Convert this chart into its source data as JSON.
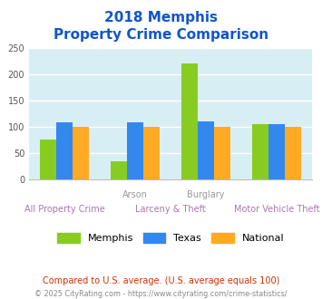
{
  "title_line1": "2018 Memphis",
  "title_line2": "Property Crime Comparison",
  "memphis": [
    75,
    35,
    220,
    105
  ],
  "texas": [
    108,
    108,
    110,
    105
  ],
  "national": [
    100,
    100,
    100,
    100
  ],
  "ylim": [
    0,
    250
  ],
  "yticks": [
    0,
    50,
    100,
    150,
    200,
    250
  ],
  "color_memphis": "#88cc22",
  "color_texas": "#3388ee",
  "color_national": "#ffaa22",
  "bg_color": "#d8eef5",
  "legend_labels": [
    "Memphis",
    "Texas",
    "National"
  ],
  "footnote1": "Compared to U.S. average. (U.S. average equals 100)",
  "footnote2": "© 2025 CityRating.com - https://www.cityrating.com/crime-statistics/",
  "title_color": "#1155cc",
  "footnote1_color": "#cc3300",
  "footnote2_color": "#888888",
  "xlabel_top_color": "#999999",
  "xlabel_bottom_color": "#aa77aa"
}
